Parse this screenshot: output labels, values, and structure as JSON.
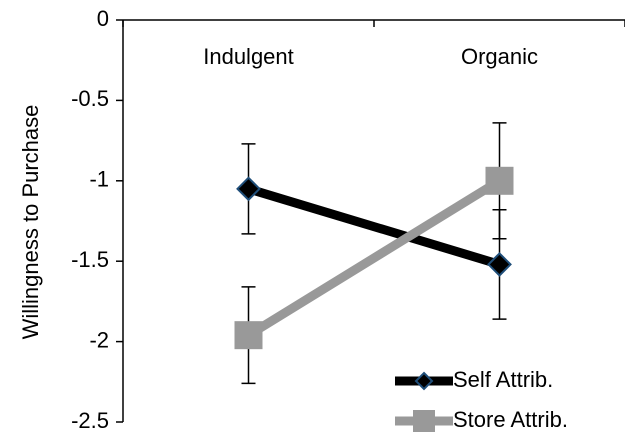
{
  "chart_data": {
    "type": "line",
    "y_label": "Willingness to Purchase",
    "categories": [
      "Indulgent",
      "Organic"
    ],
    "series": [
      {
        "name": "Self Attrib.",
        "color": "#000000",
        "marker": "diamond",
        "values": [
          -1.05,
          -1.52
        ],
        "errors": [
          0.28,
          0.34
        ]
      },
      {
        "name": "Store Attrib.",
        "color": "#999999",
        "marker": "square",
        "values": [
          -1.96,
          -1.0
        ],
        "errors": [
          0.3,
          0.36
        ]
      }
    ],
    "ylim": [
      0,
      -2.5
    ],
    "yticks": [
      0,
      -0.5,
      -1,
      -1.5,
      -2,
      -2.5
    ],
    "legend": "lower right"
  }
}
